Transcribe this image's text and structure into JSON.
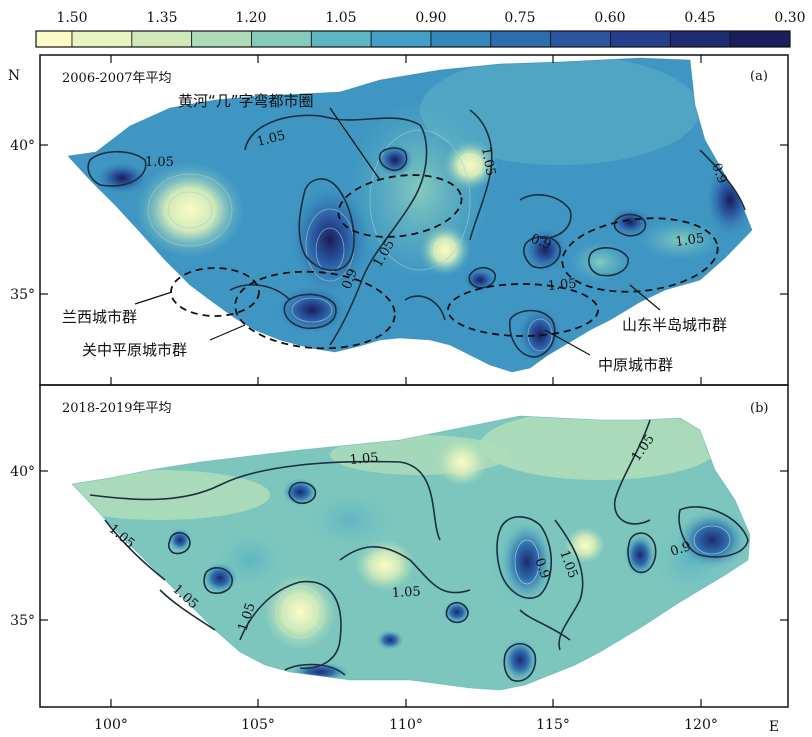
{
  "colorbar": {
    "ticks": [
      "1.50",
      "1.35",
      "1.20",
      "1.05",
      "0.90",
      "0.75",
      "0.60",
      "0.45",
      "0.30"
    ],
    "colors": [
      "#fbfbc6",
      "#e8f3c0",
      "#cfe9b9",
      "#aedcb9",
      "#85cbbd",
      "#5fb6c3",
      "#42a0c6",
      "#3587bb",
      "#2d6eae",
      "#2a56a0",
      "#263f8c",
      "#1f2b72",
      "#1a1e5a"
    ]
  },
  "axes": {
    "x_ticks": [
      "100°",
      "105°",
      "110°",
      "115°",
      "120°"
    ],
    "x_unit": "E",
    "y_ticks": [
      "40°",
      "35°"
    ],
    "y_unit": "N"
  },
  "panel_a": {
    "title": "2006-2007年平均",
    "tag": "(a)",
    "contour_labels": [
      "1.05",
      "1.05",
      "1.05",
      "0.9",
      "1.05",
      "0.9",
      "1.05",
      "0.9",
      "1.05",
      "0.9"
    ],
    "regions": {
      "jihe": "黄河“几”字弯都市圈",
      "lanxi": "兰西城市群",
      "guanzhong": "关中平原城市群",
      "zhongyuan": "中原城市群",
      "shandong": "山东半岛城市群"
    }
  },
  "panel_b": {
    "title": "2018-2019年平均",
    "tag": "(b)",
    "contour_labels": [
      "1.05",
      "1.05",
      "1.05",
      "1.05",
      "1.05",
      "0.9",
      "1.05",
      "1.05",
      "0.9"
    ]
  }
}
